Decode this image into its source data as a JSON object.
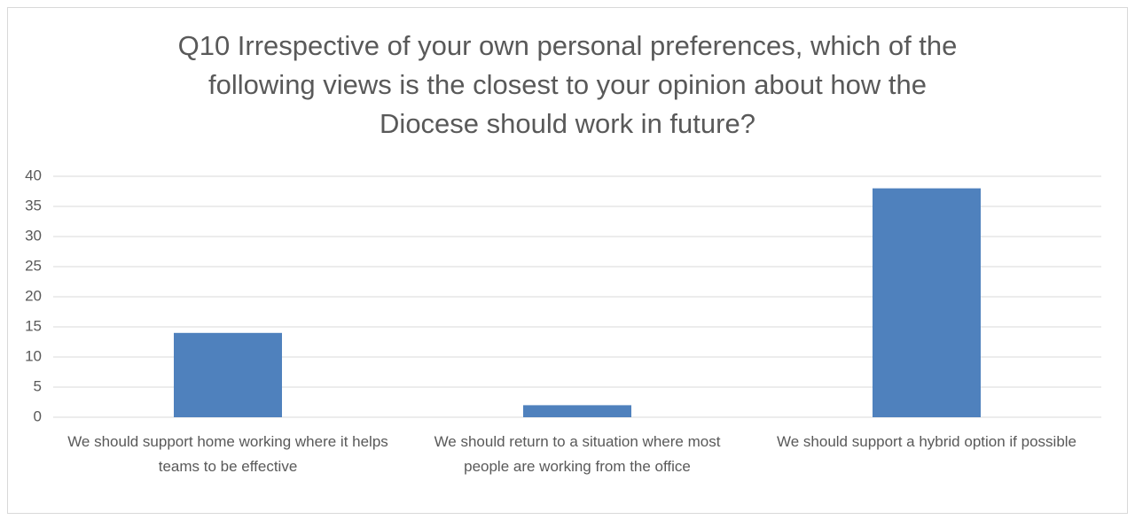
{
  "chart_data": {
    "type": "bar",
    "title": "Q10 Irrespective of your own personal preferences, which of the following views is the closest to your opinion about how the Diocese should work in future?",
    "categories": [
      "We should support home working where it helps teams to be effective",
      "We should return to a situation where most people are working from the office",
      "We should support a hybrid option if possible"
    ],
    "values": [
      14,
      2,
      38
    ],
    "color": "#4f81bd",
    "ylim": [
      0,
      40
    ],
    "yticks": [
      0,
      5,
      10,
      15,
      20,
      25,
      30,
      35,
      40
    ],
    "grid": true
  }
}
